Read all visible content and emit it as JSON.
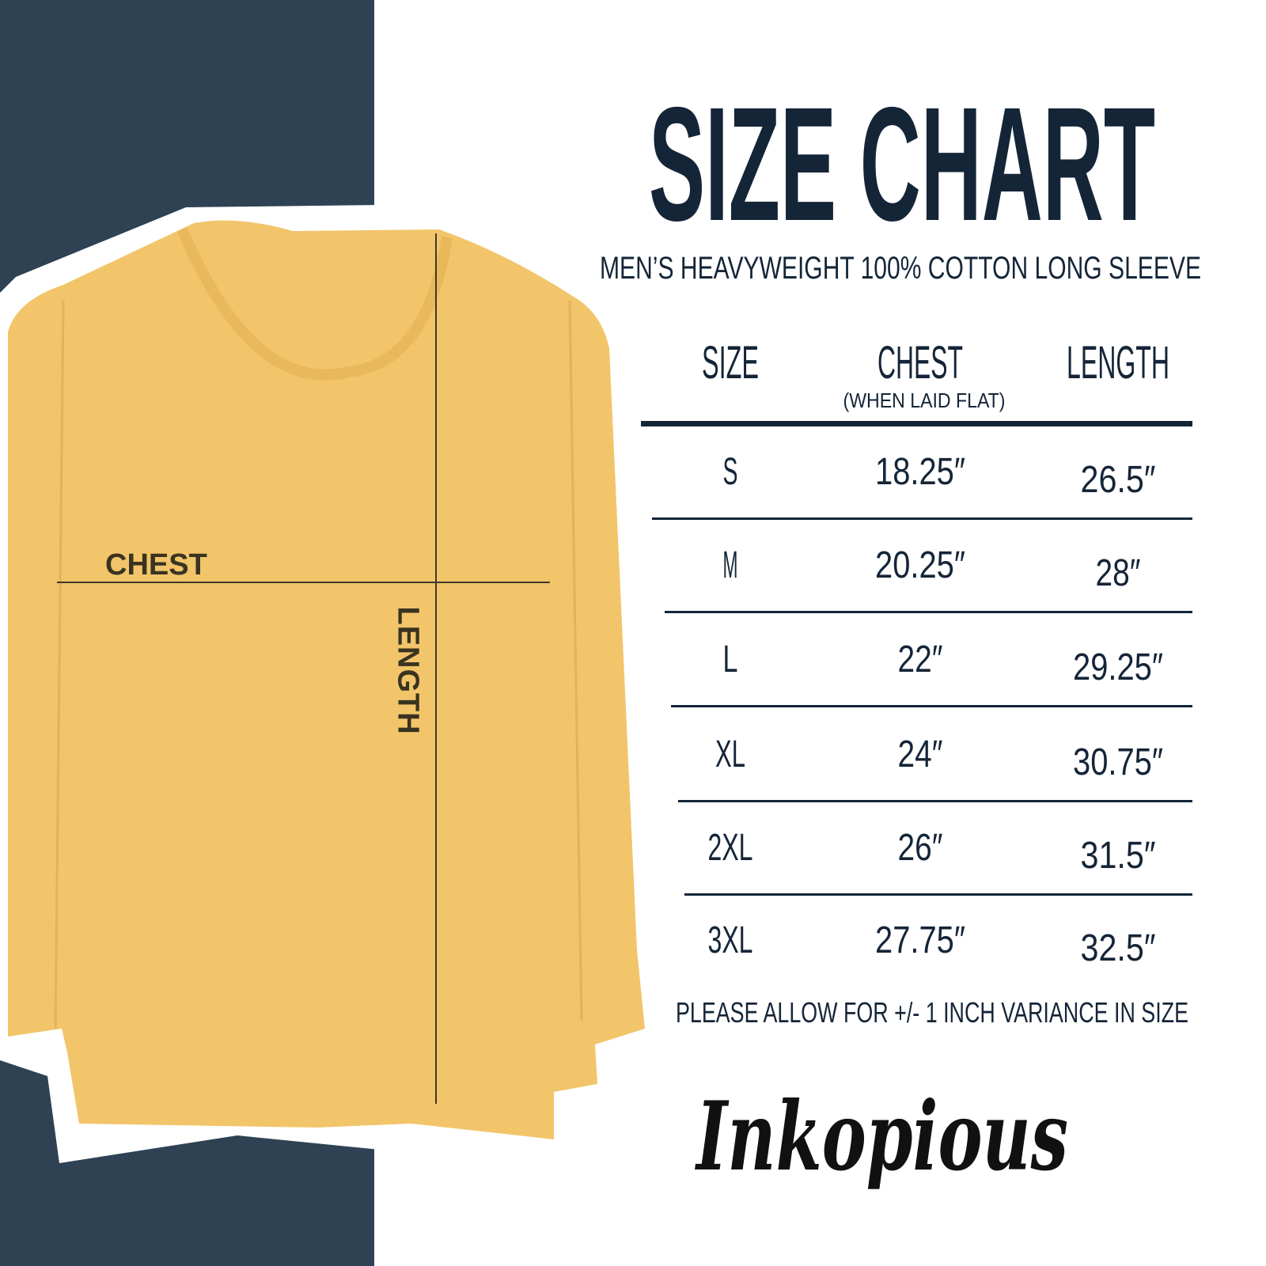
{
  "title": "SIZE CHART",
  "subtitle": "MEN’S HEAVYWEIGHT 100% COTTON LONG SLEEVE",
  "table": {
    "headers": [
      "SIZE",
      "CHEST",
      "LENGTH"
    ],
    "chest_note": "(WHEN LAID FLAT)",
    "rows": [
      [
        "S",
        "18.25″",
        "26.5″"
      ],
      [
        "M",
        "20.25″",
        "28″"
      ],
      [
        "L",
        "22″",
        "29.25″"
      ],
      [
        "XL",
        "24″",
        "30.75″"
      ],
      [
        "2XL",
        "26″",
        "31.5″"
      ],
      [
        "3XL",
        "27.75″",
        "32.5″"
      ]
    ]
  },
  "footer": "PLEASE ALLOW FOR +/- 1 INCH VARIANCE IN SIZE",
  "shirt_labels": {
    "chest": "CHEST",
    "length": "LENGTH"
  },
  "logo": "Inkopious",
  "colors": {
    "navy_panel": "#2e4254",
    "text": "#152538",
    "shirt": "#f2c56a"
  }
}
